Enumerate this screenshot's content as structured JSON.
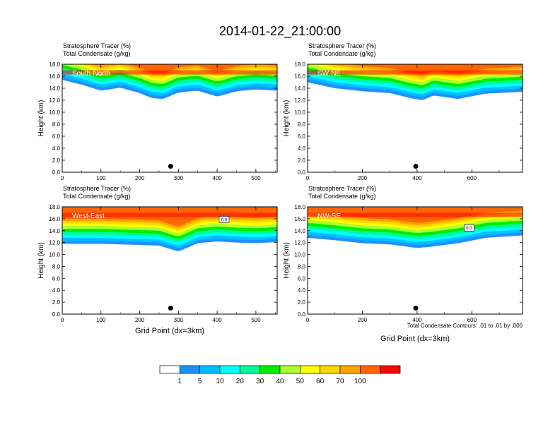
{
  "title": "2014-01-22_21:00:00",
  "panel_header": {
    "line1": "Stratosphere Tracer   (%)",
    "line2": "Total Condensate   (g/kg)"
  },
  "ylabel": "Height (km)",
  "xlabel": "Grid Point (dx=3km)",
  "contour_note": "Total Condensate Contours: .01 to .01 by .000",
  "colors": [
    "#ffffff",
    "#1e90ff",
    "#00bfff",
    "#00ffff",
    "#00fa9a",
    "#00ee00",
    "#adff2f",
    "#ffff00",
    "#ffd700",
    "#ffa500",
    "#ff6600",
    "#ff0000"
  ],
  "colorbar": {
    "labels": [
      "1",
      "5",
      "10",
      "20",
      "30",
      "40",
      "50",
      "60",
      "70",
      "100"
    ]
  },
  "chart_data": [
    {
      "type": "heatmap",
      "section": "South-North",
      "xlim": [
        0,
        555
      ],
      "ylim": [
        0,
        18
      ],
      "xticks": [
        "0",
        "100",
        "200",
        "300",
        "400",
        "500"
      ],
      "yticks": [
        "0.0",
        "2.0",
        "4.0",
        "6.0",
        "8.0",
        "10.0",
        "12.0",
        "14.0",
        "16.0",
        "18.0"
      ],
      "marker_x": 280,
      "tracer_base_km": [
        [
          0,
          15.4
        ],
        [
          50,
          14.6
        ],
        [
          100,
          13.6
        ],
        [
          150,
          14.1
        ],
        [
          200,
          13.2
        ],
        [
          230,
          12.4
        ],
        [
          260,
          12.2
        ],
        [
          300,
          13.3
        ],
        [
          350,
          13.6
        ],
        [
          400,
          12.6
        ],
        [
          450,
          13.5
        ],
        [
          500,
          13.8
        ],
        [
          555,
          13.6
        ]
      ]
    },
    {
      "type": "heatmap",
      "section": "SW-NE",
      "xlim": [
        0,
        785
      ],
      "ylim": [
        0,
        18
      ],
      "xticks": [
        "0",
        "200",
        "400",
        "600"
      ],
      "yticks": [
        "0.0",
        "2.0",
        "4.0",
        "6.0",
        "8.0",
        "10.0",
        "12.0",
        "14.0",
        "16.0",
        "18.0"
      ],
      "marker_x": 395,
      "tracer_base_km": [
        [
          0,
          15.0
        ],
        [
          100,
          14.0
        ],
        [
          200,
          13.5
        ],
        [
          300,
          13.2
        ],
        [
          380,
          12.3
        ],
        [
          420,
          12.0
        ],
        [
          460,
          12.8
        ],
        [
          550,
          12.2
        ],
        [
          650,
          13.1
        ],
        [
          785,
          13.4
        ]
      ]
    },
    {
      "type": "heatmap",
      "section": "West-East",
      "xlim": [
        0,
        555
      ],
      "ylim": [
        0,
        18
      ],
      "xticks": [
        "0",
        "100",
        "200",
        "300",
        "400",
        "500"
      ],
      "yticks": [
        "0.0",
        "2.0",
        "4.0",
        "6.0",
        "8.0",
        "10.0",
        "12.0",
        "14.0",
        "16.0",
        "18.0"
      ],
      "marker_x": 280,
      "contour_label": "0.0",
      "tracer_base_km": [
        [
          0,
          11.8
        ],
        [
          100,
          11.8
        ],
        [
          200,
          11.6
        ],
        [
          250,
          11.5
        ],
        [
          300,
          10.5
        ],
        [
          350,
          11.9
        ],
        [
          400,
          12.2
        ],
        [
          450,
          12.0
        ],
        [
          500,
          11.9
        ],
        [
          555,
          12.1
        ]
      ]
    },
    {
      "type": "heatmap",
      "section": "NW-SE",
      "xlim": [
        0,
        785
      ],
      "ylim": [
        0,
        18
      ],
      "xticks": [
        "0",
        "200",
        "400",
        "600"
      ],
      "yticks": [
        "0.0",
        "2.0",
        "4.0",
        "6.0",
        "8.0",
        "10.0",
        "12.0",
        "14.0",
        "16.0",
        "18.0"
      ],
      "marker_x": 395,
      "contour_label": "0.0",
      "tracer_base_km": [
        [
          0,
          12.8
        ],
        [
          100,
          12.4
        ],
        [
          200,
          11.9
        ],
        [
          300,
          11.7
        ],
        [
          400,
          11.1
        ],
        [
          450,
          11.3
        ],
        [
          550,
          11.9
        ],
        [
          650,
          12.8
        ],
        [
          785,
          13.2
        ]
      ]
    }
  ]
}
